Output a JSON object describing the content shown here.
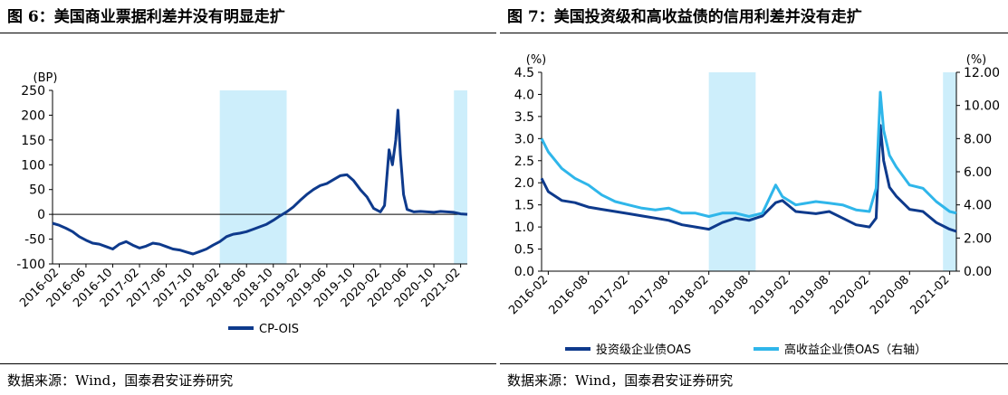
{
  "figures": [
    {
      "title": "图 6：美国商业票据利差并没有明显走扩",
      "source": "数据来源：Wind，国泰君安证券研究"
    },
    {
      "title": "图 7：美国投资级和高收益债的信用利差并没有走扩",
      "source": "数据来源：Wind，国泰君安证券研究"
    }
  ],
  "chart_data": [
    {
      "type": "line",
      "title": "图 6：美国商业票据利差并没有明显走扩",
      "unit_label": "(BP)",
      "ylim": [
        -100,
        250
      ],
      "yticks": [
        -100,
        -50,
        0,
        50,
        100,
        150,
        200,
        250
      ],
      "ytick_labels": [
        "-100",
        "-50",
        "0",
        "50",
        "100",
        "150",
        "200",
        "250"
      ],
      "xticks": [
        "2016-02",
        "2016-06",
        "2016-10",
        "2017-02",
        "2017-06",
        "2017-10",
        "2018-02",
        "2018-06",
        "2018-10",
        "2019-02",
        "2019-06",
        "2019-10",
        "2020-02",
        "2020-06",
        "2020-10",
        "2021-02"
      ],
      "shaded_ranges": [
        [
          "2018-02",
          "2018-12"
        ],
        [
          "2021-01",
          "2021-03"
        ]
      ],
      "legend_position": "bottom",
      "series": [
        {
          "name": "CP-OIS",
          "color": "#0e3a8c",
          "points": [
            [
              "2016-01",
              -18
            ],
            [
              "2016-02",
              -22
            ],
            [
              "2016-03",
              -28
            ],
            [
              "2016-04",
              -35
            ],
            [
              "2016-05",
              -45
            ],
            [
              "2016-06",
              -52
            ],
            [
              "2016-07",
              -58
            ],
            [
              "2016-08",
              -60
            ],
            [
              "2016-09",
              -65
            ],
            [
              "2016-10",
              -70
            ],
            [
              "2016-11",
              -60
            ],
            [
              "2016-12",
              -55
            ],
            [
              "2017-01",
              -62
            ],
            [
              "2017-02",
              -68
            ],
            [
              "2017-03",
              -64
            ],
            [
              "2017-04",
              -58
            ],
            [
              "2017-05",
              -60
            ],
            [
              "2017-06",
              -65
            ],
            [
              "2017-07",
              -70
            ],
            [
              "2017-08",
              -72
            ],
            [
              "2017-09",
              -76
            ],
            [
              "2017-10",
              -80
            ],
            [
              "2017-11",
              -75
            ],
            [
              "2017-12",
              -70
            ],
            [
              "2018-01",
              -62
            ],
            [
              "2018-02",
              -55
            ],
            [
              "2018-03",
              -45
            ],
            [
              "2018-04",
              -40
            ],
            [
              "2018-05",
              -38
            ],
            [
              "2018-06",
              -35
            ],
            [
              "2018-07",
              -30
            ],
            [
              "2018-08",
              -25
            ],
            [
              "2018-09",
              -20
            ],
            [
              "2018-10",
              -12
            ],
            [
              "2018-11",
              -3
            ],
            [
              "2018-12",
              5
            ],
            [
              "2019-01",
              15
            ],
            [
              "2019-02",
              28
            ],
            [
              "2019-03",
              40
            ],
            [
              "2019-04",
              50
            ],
            [
              "2019-05",
              58
            ],
            [
              "2019-06",
              62
            ],
            [
              "2019-07",
              70
            ],
            [
              "2019-08",
              78
            ],
            [
              "2019-09",
              80
            ],
            [
              "2019-10",
              68
            ],
            [
              "2019-11",
              50
            ],
            [
              "2019-12",
              35
            ],
            [
              "2020-01",
              12
            ],
            [
              "2020-02",
              5
            ],
            [
              "2020-02-20",
              18
            ],
            [
              "2020-03-10",
              130
            ],
            [
              "2020-03-25",
              100
            ],
            [
              "2020-04-10",
              150
            ],
            [
              "2020-04-20",
              210
            ],
            [
              "2020-05-01",
              120
            ],
            [
              "2020-05-15",
              40
            ],
            [
              "2020-06",
              10
            ],
            [
              "2020-07",
              5
            ],
            [
              "2020-08",
              6
            ],
            [
              "2020-09",
              5
            ],
            [
              "2020-10",
              4
            ],
            [
              "2020-11",
              6
            ],
            [
              "2020-12",
              5
            ],
            [
              "2021-01",
              4
            ],
            [
              "2021-02",
              1
            ],
            [
              "2021-03",
              0
            ]
          ]
        }
      ]
    },
    {
      "type": "line",
      "title": "图 7：美国投资级和高收益债的信用利差并没有走扩",
      "left_unit_label": "(%)",
      "right_unit_label": "(%)",
      "ylim_left": [
        0.0,
        4.5
      ],
      "yticks_left": [
        0.0,
        0.5,
        1.0,
        1.5,
        2.0,
        2.5,
        3.0,
        3.5,
        4.0,
        4.5
      ],
      "ytick_labels_left": [
        "0.0",
        "0.5",
        "1.0",
        "1.5",
        "2.0",
        "2.5",
        "3.0",
        "3.5",
        "4.0",
        "4.5"
      ],
      "ylim_right": [
        0.0,
        12.0
      ],
      "yticks_right": [
        0,
        2,
        4,
        6,
        8,
        10,
        12
      ],
      "ytick_labels_right": [
        "0.00",
        "2.00",
        "4.00",
        "6.00",
        "8.00",
        "10.00",
        "12.00"
      ],
      "xticks": [
        "2016-02",
        "2016-08",
        "2017-02",
        "2017-08",
        "2018-02",
        "2018-08",
        "2019-02",
        "2019-08",
        "2020-02",
        "2020-08",
        "2021-02"
      ],
      "shaded_ranges": [
        [
          "2018-02",
          "2018-09"
        ],
        [
          "2021-01",
          "2021-03"
        ]
      ],
      "legend_position": "bottom",
      "series": [
        {
          "name": "投资级企业债OAS",
          "axis": "left",
          "color": "#0e3a8c",
          "points": [
            [
              "2016-01",
              2.1
            ],
            [
              "2016-02",
              1.8
            ],
            [
              "2016-04",
              1.6
            ],
            [
              "2016-06",
              1.55
            ],
            [
              "2016-08",
              1.45
            ],
            [
              "2016-10",
              1.4
            ],
            [
              "2016-12",
              1.35
            ],
            [
              "2017-02",
              1.3
            ],
            [
              "2017-04",
              1.25
            ],
            [
              "2017-06",
              1.2
            ],
            [
              "2017-08",
              1.15
            ],
            [
              "2017-10",
              1.05
            ],
            [
              "2017-12",
              1.0
            ],
            [
              "2018-02",
              0.95
            ],
            [
              "2018-04",
              1.1
            ],
            [
              "2018-06",
              1.2
            ],
            [
              "2018-08",
              1.15
            ],
            [
              "2018-10",
              1.25
            ],
            [
              "2018-12",
              1.55
            ],
            [
              "2019-01",
              1.6
            ],
            [
              "2019-03",
              1.35
            ],
            [
              "2019-06",
              1.3
            ],
            [
              "2019-08",
              1.35
            ],
            [
              "2019-10",
              1.2
            ],
            [
              "2019-12",
              1.05
            ],
            [
              "2020-02",
              1.0
            ],
            [
              "2020-03-01",
              1.2
            ],
            [
              "2020-03-20",
              3.3
            ],
            [
              "2020-04-05",
              2.5
            ],
            [
              "2020-05",
              1.9
            ],
            [
              "2020-06",
              1.7
            ],
            [
              "2020-08",
              1.4
            ],
            [
              "2020-10",
              1.35
            ],
            [
              "2020-12",
              1.1
            ],
            [
              "2021-02",
              0.95
            ],
            [
              "2021-03",
              0.9
            ]
          ]
        },
        {
          "name": "高收益企业债OAS（右轴）",
          "axis": "right",
          "color": "#2fb6ea",
          "points": [
            [
              "2016-01",
              8.0
            ],
            [
              "2016-02",
              7.2
            ],
            [
              "2016-04",
              6.2
            ],
            [
              "2016-06",
              5.6
            ],
            [
              "2016-08",
              5.2
            ],
            [
              "2016-10",
              4.6
            ],
            [
              "2016-12",
              4.2
            ],
            [
              "2017-02",
              4.0
            ],
            [
              "2017-04",
              3.8
            ],
            [
              "2017-06",
              3.7
            ],
            [
              "2017-08",
              3.8
            ],
            [
              "2017-10",
              3.5
            ],
            [
              "2017-12",
              3.5
            ],
            [
              "2018-02",
              3.3
            ],
            [
              "2018-04",
              3.5
            ],
            [
              "2018-06",
              3.5
            ],
            [
              "2018-08",
              3.3
            ],
            [
              "2018-10",
              3.5
            ],
            [
              "2018-12",
              5.2
            ],
            [
              "2019-01",
              4.5
            ],
            [
              "2019-03",
              4.0
            ],
            [
              "2019-06",
              4.2
            ],
            [
              "2019-08",
              4.1
            ],
            [
              "2019-10",
              4.0
            ],
            [
              "2019-12",
              3.7
            ],
            [
              "2020-02",
              3.6
            ],
            [
              "2020-03-01",
              5.0
            ],
            [
              "2020-03-20",
              10.8
            ],
            [
              "2020-04-05",
              8.5
            ],
            [
              "2020-05",
              7.0
            ],
            [
              "2020-06",
              6.3
            ],
            [
              "2020-08",
              5.2
            ],
            [
              "2020-10",
              5.0
            ],
            [
              "2020-12",
              4.2
            ],
            [
              "2021-02",
              3.6
            ],
            [
              "2021-03",
              3.5
            ]
          ]
        }
      ]
    }
  ]
}
